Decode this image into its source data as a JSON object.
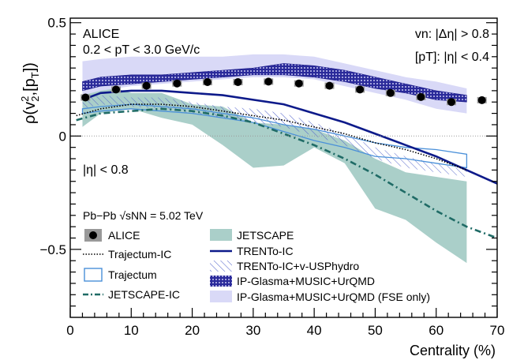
{
  "chart_data": {
    "type": "line",
    "xlabel": "Centrality (%)",
    "ylabel_main": "ρ(v",
    "ylabel_sup": "2",
    "ylabel_sub": "2",
    "ylabel_mid": ",[p",
    "ylabel_sub2": "T",
    "ylabel_end": "])",
    "xlim": [
      0,
      70
    ],
    "ylim": [
      -0.8,
      0.52
    ],
    "xticks": [
      0,
      10,
      20,
      30,
      40,
      50,
      60,
      70
    ],
    "yticks": [
      -0.5,
      0,
      0.5
    ],
    "yticklabels": [
      "−0.5",
      "0",
      "0.5"
    ],
    "zero_line": true,
    "annotations": {
      "experiment": "ALICE",
      "pt_range": "0.2 < pT < 3.0 GeV/c",
      "vn_cut": "vn: |Δη| > 0.8",
      "pt_cut": "[pT]: |η| < 0.4",
      "eta_cut": "|η| < 0.8",
      "system": "Pb−Pb √sNN = 5.02 TeV"
    },
    "alice": {
      "name": "ALICE",
      "x": [
        2.5,
        7.5,
        12.5,
        17.5,
        22.5,
        27.5,
        32.5,
        37.5,
        42.5,
        47.5,
        52.5,
        57.5,
        62.5,
        67.5
      ],
      "y": [
        0.17,
        0.205,
        0.222,
        0.232,
        0.238,
        0.238,
        0.24,
        0.232,
        0.222,
        0.205,
        0.19,
        0.172,
        0.15,
        0.158
      ]
    },
    "series": [
      {
        "name": "JETSCAPE",
        "style": "band",
        "color": "#aacfc9",
        "x": [
          2,
          5,
          10,
          15,
          20,
          25,
          30,
          35,
          40,
          45,
          50,
          55,
          60,
          65
        ],
        "y_low": [
          0.04,
          0.1,
          0.12,
          0.08,
          0.05,
          -0.04,
          -0.14,
          -0.13,
          -0.05,
          -0.12,
          -0.32,
          -0.37,
          -0.47,
          -0.56
        ],
        "y_high": [
          0.29,
          0.23,
          0.19,
          0.19,
          0.14,
          0.13,
          0.06,
          0.05,
          0.03,
          -0.02,
          -0.1,
          -0.16,
          -0.18,
          -0.2
        ]
      },
      {
        "name": "IP-Glasma+MUSIC+UrQMD (FSE only)",
        "style": "band",
        "color": "#d9d9f7",
        "x": [
          2,
          5,
          10,
          15,
          20,
          25,
          30,
          35,
          40,
          45,
          50,
          55,
          60,
          65
        ],
        "y_low": [
          0.18,
          0.2,
          0.22,
          0.23,
          0.24,
          0.25,
          0.26,
          0.26,
          0.25,
          0.22,
          0.19,
          0.16,
          0.12,
          0.1
        ],
        "y_high": [
          0.33,
          0.34,
          0.35,
          0.35,
          0.35,
          0.35,
          0.36,
          0.36,
          0.35,
          0.32,
          0.29,
          0.26,
          0.24,
          0.21
        ]
      },
      {
        "name": "IP-Glasma+MUSIC+UrQMD",
        "style": "hatched-band",
        "color": "#1f1f8c",
        "x": [
          2,
          5,
          10,
          15,
          20,
          25,
          30,
          35,
          40,
          45,
          50,
          55,
          60,
          65
        ],
        "y_low": [
          0.2,
          0.22,
          0.23,
          0.24,
          0.25,
          0.26,
          0.27,
          0.27,
          0.26,
          0.24,
          0.21,
          0.19,
          0.16,
          0.15
        ],
        "y_high": [
          0.24,
          0.26,
          0.27,
          0.27,
          0.28,
          0.29,
          0.3,
          0.32,
          0.31,
          0.29,
          0.26,
          0.23,
          0.2,
          0.18
        ]
      },
      {
        "name": "TRENTo-IC+v-USPhydro",
        "style": "diag-band",
        "color": "#5566cc",
        "x": [
          2,
          5,
          10,
          15,
          20,
          25,
          30,
          35,
          40,
          45,
          50,
          55,
          60,
          65
        ],
        "y_low": [
          0.12,
          0.14,
          0.13,
          0.12,
          0.1,
          0.08,
          0.06,
          0.04,
          0.0,
          -0.04,
          -0.1,
          -0.14,
          -0.16,
          -0.18
        ],
        "y_high": [
          0.16,
          0.18,
          0.17,
          0.17,
          0.15,
          0.13,
          0.12,
          0.1,
          0.06,
          0.01,
          -0.05,
          -0.09,
          -0.12,
          -0.15
        ]
      },
      {
        "name": "Trajectum",
        "style": "outline-band",
        "color": "#4a90d9",
        "x": [
          2,
          5,
          10,
          15,
          20,
          25,
          30,
          35,
          40,
          45,
          50,
          55,
          60,
          65
        ],
        "y_low": [
          0.1,
          0.11,
          0.12,
          0.11,
          0.1,
          0.08,
          0.06,
          0.02,
          -0.02,
          -0.05,
          -0.09,
          -0.1,
          -0.12,
          -0.14
        ],
        "y_high": [
          0.12,
          0.13,
          0.14,
          0.13,
          0.12,
          0.1,
          0.08,
          0.05,
          0.03,
          0.0,
          -0.03,
          -0.05,
          -0.06,
          -0.08
        ]
      },
      {
        "name": "TRENTo-IC",
        "style": "line",
        "color": "#0d1a8a",
        "x": [
          2,
          5,
          10,
          15,
          20,
          25,
          30,
          35,
          40,
          45,
          50,
          55,
          60,
          65,
          70
        ],
        "y": [
          0.16,
          0.19,
          0.2,
          0.2,
          0.19,
          0.18,
          0.16,
          0.14,
          0.1,
          0.06,
          0.01,
          -0.04,
          -0.09,
          -0.15,
          -0.21
        ]
      },
      {
        "name": "Trajectum-IC",
        "style": "dotted",
        "color": "#000000",
        "x": [
          1,
          5,
          10,
          15,
          20,
          25,
          30,
          35,
          40,
          45,
          50,
          55,
          60,
          65
        ],
        "y": [
          0.09,
          0.12,
          0.14,
          0.14,
          0.13,
          0.11,
          0.09,
          0.07,
          0.04,
          0.01,
          -0.03,
          -0.06,
          -0.1,
          -0.15
        ]
      },
      {
        "name": "JETSCAPE-IC",
        "style": "dashdot",
        "color": "#1f6b66",
        "x": [
          1,
          5,
          10,
          15,
          20,
          25,
          30,
          35,
          40,
          45,
          50,
          55,
          60,
          65,
          70
        ],
        "y": [
          0.07,
          0.1,
          0.11,
          0.12,
          0.11,
          0.09,
          0.06,
          0.01,
          -0.04,
          -0.1,
          -0.17,
          -0.25,
          -0.33,
          -0.4,
          -0.45
        ]
      }
    ],
    "legend": {
      "left": [
        "ALICE",
        "Trajectum-IC",
        "Trajectum",
        "JETSCAPE-IC"
      ],
      "right": [
        "JETSCAPE",
        "TRENTo-IC",
        "TRENTo-IC+v-USPhydro",
        "IP-Glasma+MUSIC+UrQMD",
        "IP-Glasma+MUSIC+UrQMD (FSE only)"
      ]
    }
  }
}
